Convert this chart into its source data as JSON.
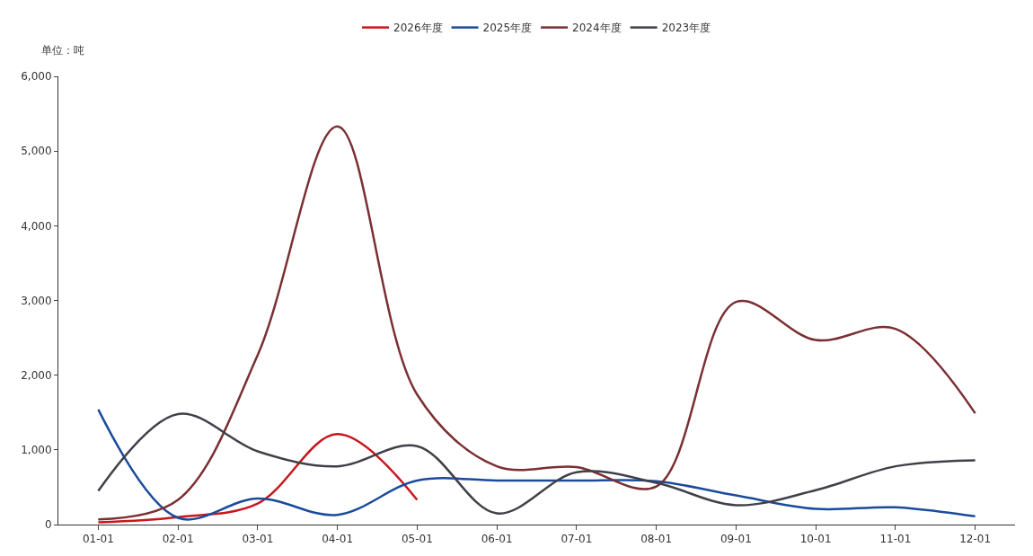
{
  "chart_data": {
    "type": "line",
    "ylabel": "单位：吨",
    "categories": [
      "01-01",
      "02-01",
      "03-01",
      "04-01",
      "05-01",
      "06-01",
      "07-01",
      "08-01",
      "09-01",
      "10-01",
      "11-01",
      "12-01"
    ],
    "series": [
      {
        "name": "2026年度",
        "color": "#c8161d",
        "values": [
          30,
          100,
          280,
          1210,
          330,
          null,
          null,
          null,
          null,
          null,
          null,
          null
        ]
      },
      {
        "name": "2025年度",
        "color": "#1a4b9b",
        "values": [
          1540,
          90,
          350,
          130,
          590,
          590,
          590,
          580,
          390,
          210,
          230,
          110
        ]
      },
      {
        "name": "2024年度",
        "color": "#7b2f32",
        "values": [
          70,
          330,
          2270,
          5330,
          1740,
          780,
          770,
          510,
          2980,
          2470,
          2620,
          1490
        ]
      },
      {
        "name": "2023年度",
        "color": "#404049",
        "values": [
          450,
          1480,
          980,
          780,
          1050,
          150,
          700,
          560,
          260,
          460,
          780,
          860
        ]
      }
    ],
    "ylim": [
      0,
      6000
    ],
    "yticks": [
      0,
      {
        "value": 1000,
        "label": "1,000"
      },
      {
        "value": 2000,
        "label": "2,000"
      },
      {
        "value": 3000,
        "label": "3,000"
      },
      {
        "value": 4000,
        "label": "4,000"
      },
      {
        "value": 5000,
        "label": "5,000"
      },
      {
        "value": 6000,
        "label": "6,000"
      }
    ],
    "grid": false,
    "legend": "top",
    "marker": "none",
    "line_style": "solid"
  }
}
